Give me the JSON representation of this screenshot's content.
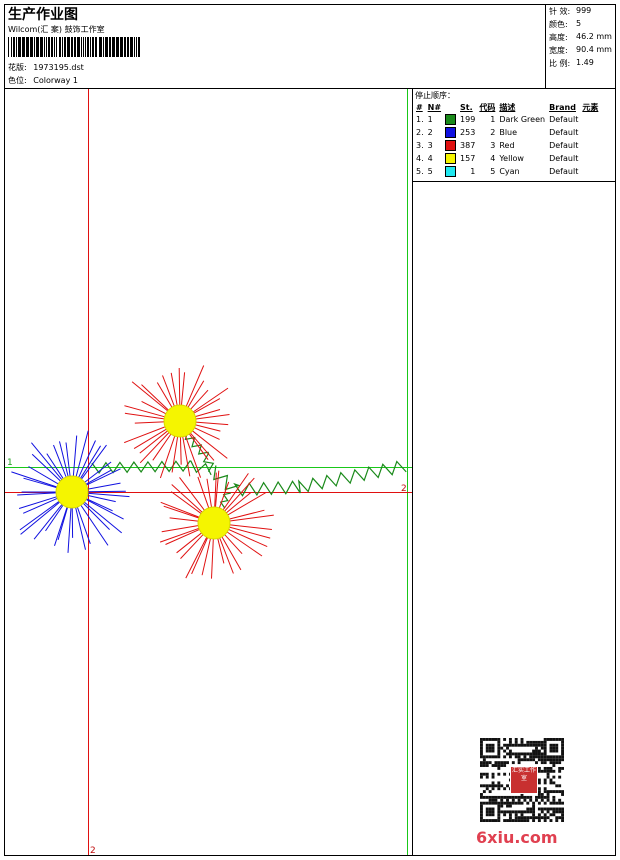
{
  "header": {
    "title": "生产作业图",
    "company": "Wilcom(汇 案) 鼓饰工作室",
    "design_label": "花版:",
    "design_value": "1973195.dst",
    "colorway_label": "色位:",
    "colorway_value": "Colorway 1"
  },
  "stats": [
    {
      "label": "针 效:",
      "value": "999"
    },
    {
      "label": "颜色:",
      "value": "5"
    },
    {
      "label": "高度:",
      "value": "46.2 mm"
    },
    {
      "label": "宽度:",
      "value": "90.4 mm"
    },
    {
      "label": "比 例:",
      "value": "1.49"
    }
  ],
  "stop_sequence": {
    "title": "停止顺序：",
    "columns": [
      "#",
      "N#",
      "St.",
      "代码",
      "描述",
      "Brand",
      "元素"
    ],
    "rows": [
      {
        "idx": "1.",
        "n": "1",
        "st": "199",
        "code": "1",
        "desc": "Dark Green",
        "brand": "Default",
        "color": "#1a8a1a"
      },
      {
        "idx": "2.",
        "n": "2",
        "st": "253",
        "code": "2",
        "desc": "Blue",
        "brand": "Default",
        "color": "#1010e0"
      },
      {
        "idx": "3.",
        "n": "3",
        "st": "387",
        "code": "3",
        "desc": "Red",
        "brand": "Default",
        "color": "#e01010"
      },
      {
        "idx": "4.",
        "n": "4",
        "st": "157",
        "code": "4",
        "desc": "Yellow",
        "brand": "Default",
        "color": "#f5f500"
      },
      {
        "idx": "5.",
        "n": "5",
        "st": "1",
        "code": "5",
        "desc": "Cyan",
        "brand": "Default",
        "color": "#20e8f0"
      }
    ]
  },
  "guides": {
    "green_label": "1",
    "red_label_right": "2",
    "red_label_bottom": "2"
  },
  "watermark": {
    "site": "6xiu.com",
    "seal_text": "汇实工作室"
  }
}
